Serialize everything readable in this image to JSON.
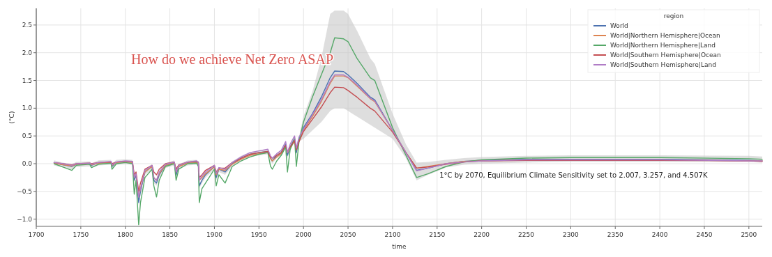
{
  "chart_data": {
    "type": "line",
    "annotations": [
      "How do we achieve Net Zero ASAP",
      "1°C by 2070, Equilibrium Climate Sensitivity set to 2.007, 3.257, and 4.507K"
    ],
    "xlabel": "time",
    "ylabel": "(°C)",
    "legend_title": "region",
    "legend": "top right",
    "grid": true,
    "line_style": "solid",
    "marker": "none",
    "xlim": [
      1700,
      2515
    ],
    "ylim": [
      -1.13,
      2.8
    ],
    "xticks": [
      1700,
      1750,
      1800,
      1850,
      1900,
      1950,
      2000,
      2050,
      2100,
      2150,
      2200,
      2250,
      2300,
      2350,
      2400,
      2450,
      2500
    ],
    "yticks": [
      {
        "value": -1,
        "label": "−1.0"
      },
      {
        "value": -0.5,
        "label": "−0.5"
      },
      {
        "value": 0,
        "label": "0.0"
      },
      {
        "value": 0.5,
        "label": "0.5"
      },
      {
        "value": 1,
        "label": "1.0"
      },
      {
        "value": 1.5,
        "label": "1.5"
      },
      {
        "value": 2,
        "label": "2.0"
      },
      {
        "value": 2.5,
        "label": "2.5"
      }
    ],
    "x": [
      1720,
      1730,
      1740,
      1745,
      1760,
      1762,
      1770,
      1784,
      1785,
      1790,
      1800,
      1808,
      1810,
      1812,
      1815,
      1817,
      1822,
      1830,
      1832,
      1835,
      1838,
      1845,
      1855,
      1857,
      1860,
      1870,
      1880,
      1882,
      1883,
      1886,
      1890,
      1900,
      1902,
      1905,
      1912,
      1920,
      1930,
      1940,
      1950,
      1960,
      1963,
      1965,
      1970,
      1975,
      1980,
      1982,
      1985,
      1990,
      1992,
      1995,
      2000,
      2010,
      2020,
      2030,
      2035,
      2045,
      2050,
      2060,
      2075,
      2080,
      2100,
      2115,
      2127,
      2140,
      2160,
      2180,
      2200,
      2250,
      2300,
      2400,
      2500,
      2515
    ],
    "series": [
      {
        "name": "World",
        "color": "#4c72b0",
        "values": [
          0.02,
          -0.02,
          -0.05,
          -0.01,
          0.0,
          -0.03,
          0.02,
          0.03,
          -0.05,
          0.03,
          0.04,
          0.03,
          -0.3,
          -0.2,
          -0.7,
          -0.5,
          -0.15,
          -0.05,
          -0.3,
          -0.35,
          -0.2,
          -0.03,
          0.02,
          -0.2,
          -0.05,
          0.02,
          0.03,
          0.0,
          -0.4,
          -0.3,
          -0.2,
          -0.05,
          -0.25,
          -0.1,
          -0.15,
          0.0,
          0.1,
          0.17,
          0.2,
          0.22,
          0.1,
          0.05,
          0.15,
          0.2,
          0.35,
          0.15,
          0.3,
          0.45,
          0.2,
          0.45,
          0.65,
          0.9,
          1.2,
          1.55,
          1.67,
          1.66,
          1.6,
          1.45,
          1.2,
          1.15,
          0.6,
          0.2,
          -0.12,
          -0.08,
          0.0,
          0.04,
          0.06,
          0.08,
          0.08,
          0.08,
          0.06,
          0.05
        ],
        "lower": [
          -0.03,
          -0.07,
          -0.1,
          -0.06,
          -0.05,
          -0.08,
          -0.03,
          -0.02,
          -0.1,
          -0.02,
          -0.01,
          -0.02,
          -0.35,
          -0.25,
          -0.75,
          -0.55,
          -0.2,
          -0.1,
          -0.35,
          -0.4,
          -0.25,
          -0.08,
          -0.03,
          -0.25,
          -0.1,
          -0.03,
          -0.02,
          -0.05,
          -0.45,
          -0.35,
          -0.25,
          -0.1,
          -0.3,
          -0.15,
          -0.2,
          -0.05,
          0.05,
          0.12,
          0.15,
          0.17,
          0.05,
          0.0,
          0.1,
          0.15,
          0.3,
          0.1,
          0.25,
          0.4,
          0.15,
          0.4,
          0.45,
          0.6,
          0.75,
          0.95,
          1.0,
          1.0,
          0.95,
          0.85,
          0.7,
          0.65,
          0.45,
          0.1,
          -0.3,
          -0.2,
          -0.07,
          -0.02,
          0.0,
          0.02,
          0.03,
          0.03,
          0.03,
          0.02
        ],
        "upper": [
          0.06,
          0.02,
          -0.01,
          0.03,
          0.04,
          0.01,
          0.06,
          0.07,
          -0.01,
          0.07,
          0.08,
          0.07,
          -0.26,
          -0.16,
          -0.66,
          -0.46,
          -0.11,
          -0.01,
          -0.26,
          -0.31,
          -0.16,
          0.01,
          0.06,
          -0.16,
          -0.01,
          0.06,
          0.07,
          0.04,
          -0.36,
          -0.26,
          -0.16,
          -0.01,
          -0.21,
          -0.06,
          -0.11,
          0.04,
          0.14,
          0.21,
          0.24,
          0.26,
          0.14,
          0.09,
          0.19,
          0.24,
          0.39,
          0.19,
          0.34,
          0.49,
          0.24,
          0.49,
          0.85,
          1.3,
          1.9,
          2.7,
          2.76,
          2.76,
          2.7,
          2.4,
          1.9,
          1.8,
          0.9,
          0.35,
          0.02,
          0.03,
          0.07,
          0.1,
          0.12,
          0.14,
          0.15,
          0.15,
          0.14,
          0.13
        ]
      },
      {
        "name": "World|Northern Hemisphere|Ocean",
        "color": "#dd8452",
        "values": [
          0.01,
          -0.02,
          -0.04,
          -0.01,
          0.0,
          -0.02,
          0.01,
          0.02,
          -0.03,
          0.02,
          0.03,
          0.02,
          -0.25,
          -0.18,
          -0.6,
          -0.45,
          -0.15,
          -0.05,
          -0.25,
          -0.3,
          -0.18,
          -0.03,
          0.01,
          -0.15,
          -0.05,
          0.01,
          0.02,
          0.0,
          -0.3,
          -0.25,
          -0.18,
          -0.06,
          -0.2,
          -0.1,
          -0.12,
          -0.01,
          0.08,
          0.15,
          0.18,
          0.2,
          0.1,
          0.05,
          0.12,
          0.18,
          0.3,
          0.2,
          0.28,
          0.4,
          0.25,
          0.4,
          0.6,
          0.85,
          1.12,
          1.45,
          1.58,
          1.58,
          1.55,
          1.4,
          1.17,
          1.12,
          0.6,
          0.2,
          -0.08,
          -0.05,
          0.0,
          0.04,
          0.05,
          0.07,
          0.07,
          0.07,
          0.05,
          0.05
        ]
      },
      {
        "name": "World|Northern Hemisphere|Land",
        "color": "#55a868",
        "values": [
          0.0,
          -0.06,
          -0.12,
          -0.03,
          -0.01,
          -0.07,
          -0.01,
          0.01,
          -0.1,
          0.0,
          0.02,
          0.0,
          -0.55,
          -0.3,
          -1.1,
          -0.7,
          -0.25,
          -0.1,
          -0.4,
          -0.6,
          -0.3,
          -0.05,
          0.0,
          -0.3,
          -0.1,
          0.0,
          0.01,
          -0.05,
          -0.7,
          -0.45,
          -0.35,
          -0.1,
          -0.4,
          -0.2,
          -0.35,
          -0.05,
          0.05,
          0.12,
          0.17,
          0.2,
          -0.05,
          -0.1,
          0.05,
          0.15,
          0.3,
          -0.15,
          0.25,
          0.45,
          -0.05,
          0.4,
          0.75,
          1.2,
          1.6,
          2.0,
          2.27,
          2.25,
          2.2,
          1.9,
          1.55,
          1.5,
          0.65,
          0.15,
          -0.25,
          -0.18,
          -0.05,
          0.03,
          0.07,
          0.1,
          0.11,
          0.11,
          0.09,
          0.08
        ]
      },
      {
        "name": "World|Southern Hemisphere|Ocean",
        "color": "#c44e52",
        "values": [
          0.02,
          0.0,
          -0.02,
          0.0,
          0.01,
          0.0,
          0.02,
          0.03,
          0.0,
          0.03,
          0.04,
          0.04,
          -0.2,
          -0.15,
          -0.5,
          -0.35,
          -0.1,
          -0.03,
          -0.15,
          -0.2,
          -0.1,
          0.0,
          0.03,
          -0.1,
          -0.02,
          0.03,
          0.04,
          0.03,
          -0.25,
          -0.2,
          -0.12,
          -0.03,
          -0.15,
          -0.08,
          -0.08,
          0.02,
          0.1,
          0.17,
          0.2,
          0.22,
          0.12,
          0.1,
          0.15,
          0.2,
          0.33,
          0.22,
          0.3,
          0.42,
          0.25,
          0.4,
          0.58,
          0.8,
          1.02,
          1.28,
          1.38,
          1.37,
          1.32,
          1.2,
          1.0,
          0.95,
          0.57,
          0.2,
          -0.08,
          -0.06,
          -0.01,
          0.03,
          0.05,
          0.06,
          0.06,
          0.06,
          0.05,
          0.04
        ]
      },
      {
        "name": "World|Southern Hemisphere|Land",
        "color": "#b07cc6",
        "values": [
          0.02,
          0.0,
          -0.03,
          0.0,
          0.01,
          -0.01,
          0.02,
          0.04,
          -0.02,
          0.03,
          0.05,
          0.04,
          -0.25,
          -0.18,
          -0.6,
          -0.45,
          -0.12,
          -0.03,
          -0.25,
          -0.3,
          -0.15,
          -0.01,
          0.03,
          -0.15,
          -0.03,
          0.03,
          0.05,
          0.02,
          -0.3,
          -0.22,
          -0.15,
          -0.03,
          -0.18,
          -0.07,
          -0.1,
          0.02,
          0.12,
          0.2,
          0.23,
          0.26,
          0.14,
          0.1,
          0.18,
          0.24,
          0.4,
          0.2,
          0.35,
          0.5,
          0.28,
          0.48,
          0.62,
          0.88,
          1.15,
          1.48,
          1.6,
          1.6,
          1.56,
          1.42,
          1.18,
          1.13,
          0.6,
          0.2,
          -0.13,
          -0.08,
          0.0,
          0.03,
          0.05,
          0.07,
          0.07,
          0.07,
          0.05,
          0.05
        ]
      }
    ]
  }
}
